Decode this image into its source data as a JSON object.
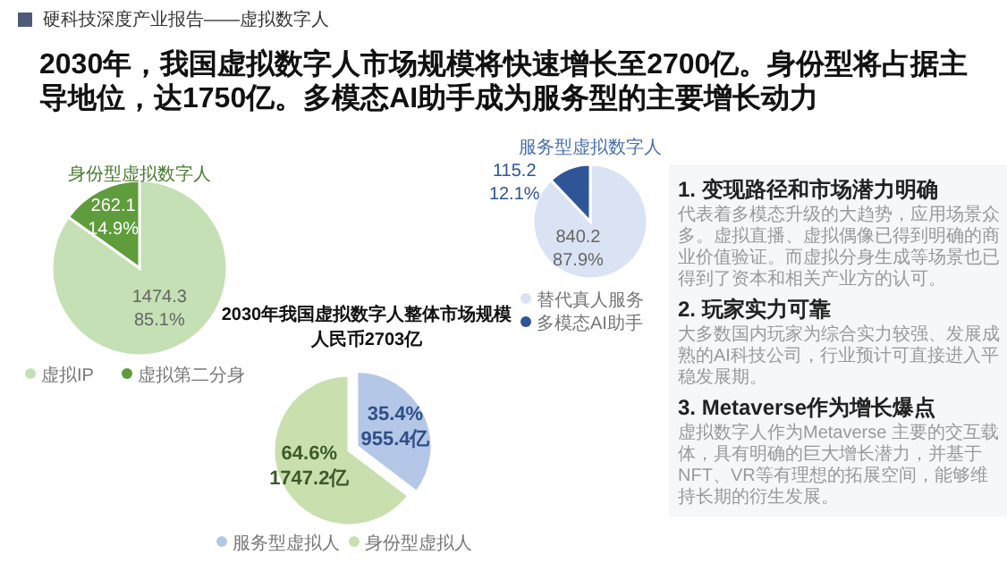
{
  "chart_data": [
    {
      "type": "other",
      "title": "2030年，我国虚拟数字人市场规模将快速增长至2700亿。身份型将占据主导地位，达1750亿。多模态AI助手成为服务型的主要增长动力",
      "subtitle": "硬科技深度产业报告——虚拟数字人"
    },
    {
      "type": "pie",
      "title": "身份型虚拟数字人",
      "categories": [
        "虚拟IP",
        "虚拟第二分身"
      ],
      "values": [
        1474.3,
        262.1
      ],
      "colors": [
        "#c5e0b4",
        "#5e9c3c"
      ],
      "value_labels": [
        "1474.3\n85.1%",
        "262.1\n14.9%"
      ],
      "legend": "bottom"
    },
    {
      "type": "pie",
      "title": "2030年我国虚拟数字人整体市场规模人民币2703亿",
      "categories": [
        "服务型虚拟人",
        "身份型虚拟人"
      ],
      "values": [
        955.4,
        1747.2
      ],
      "colors": [
        "#b4c7e7",
        "#c9dfae"
      ],
      "value_labels": [
        "35.4%\n955.4亿",
        "64.6%\n1747.2亿"
      ],
      "legend": "bottom"
    },
    {
      "type": "pie",
      "title": "服务型虚拟数字人",
      "categories": [
        "替代真人服务",
        "多模态AI助手"
      ],
      "values": [
        840.2,
        115.2
      ],
      "colors": [
        "#dae3f3",
        "#2f5597"
      ],
      "value_labels": [
        "840.2\n87.9%",
        "115.2\n12.1%"
      ],
      "legend": "bottom"
    },
    {
      "type": "other",
      "annotations": [
        "1. 变现路径和市场潜力明确",
        "代表着多模态升级的大趋势，应用场景众多。虚拟直播、虚拟偶像已得到明确的商业价值验证。而虚拟分身生成等场景也已得到了资本和相关产业方的认可。",
        "2. 玩家实力可靠",
        "大多数国内玩家为综合实力较强、发展成熟的AI科技公司，行业预计可直接进入平稳发展期。",
        "3. Metaverse作为增长爆点",
        "虚拟数字人作为Metaverse 主要的交互载体，具有明确的巨大增长潜力，并基于NFT、VR等有理想的拓展空间，能够维持长期的衍生发展。"
      ]
    }
  ]
}
